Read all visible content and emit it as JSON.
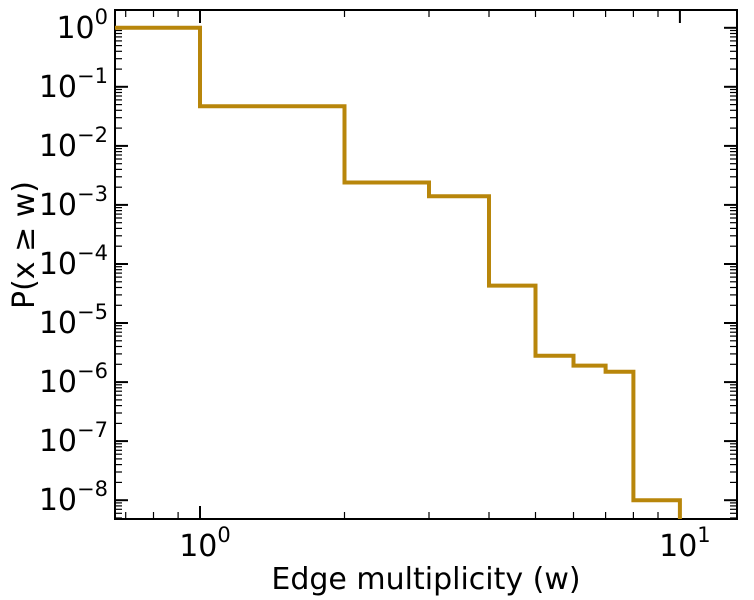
{
  "figure": {
    "background": "#ffffff",
    "frame_color": "#000000"
  },
  "chart_data": {
    "type": "line",
    "subtype": "step-ccdf",
    "title": "",
    "xlabel": "Edge multiplicity (w)",
    "ylabel": "P(x ≥ w)",
    "xscale": "log",
    "yscale": "log",
    "xlim": [
      0.665,
      13.15
    ],
    "ylim": [
      4.8e-09,
      2.0
    ],
    "x_tick_exponents": [
      0,
      1
    ],
    "y_tick_exponents": [
      0,
      -1,
      -2,
      -3,
      -4,
      -5,
      -6,
      -7,
      -8
    ],
    "grid": false,
    "legend": false,
    "line_color": "#b8860b",
    "line_width": 4,
    "steps": [
      {
        "w": 1,
        "p": 1.0
      },
      {
        "w": 2,
        "p": 0.047
      },
      {
        "w": 3,
        "p": 0.0024
      },
      {
        "w": 4,
        "p": 0.0014
      },
      {
        "w": 5,
        "p": 4.3e-05
      },
      {
        "w": 6,
        "p": 2.8e-06
      },
      {
        "w": 7,
        "p": 1.9e-06
      },
      {
        "w": 8,
        "p": 1.5e-06
      },
      {
        "w": 9,
        "p": 1e-08
      },
      {
        "w": 10,
        "p": 1e-08
      }
    ]
  }
}
